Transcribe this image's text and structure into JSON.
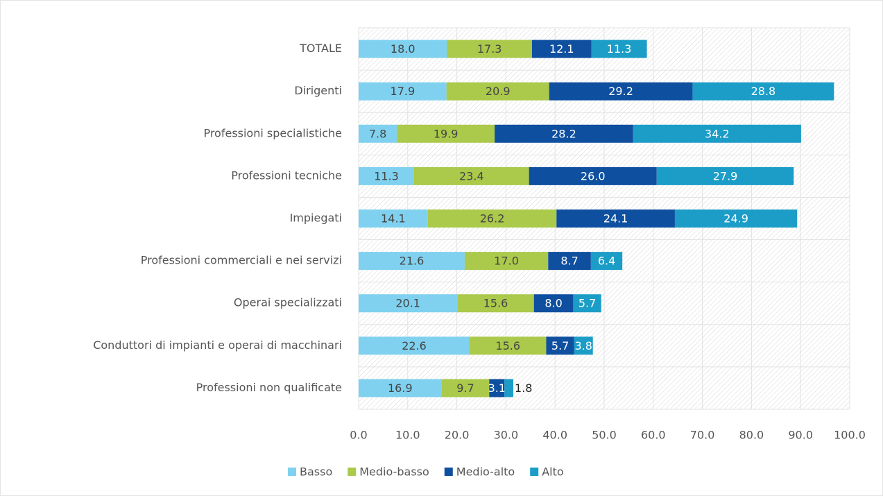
{
  "chart_data": {
    "type": "stacked-bar-horizontal",
    "categories": [
      "TOTALE",
      "Dirigenti",
      "Professioni specialistiche",
      "Professioni tecniche",
      "Impiegati",
      "Professioni commerciali e nei servizi",
      "Operai specializzati",
      "Conduttori di impianti e operai di macchinari",
      "Professioni non qualificate"
    ],
    "series": [
      {
        "name": "Basso",
        "color": "#7fd1ef",
        "values": [
          18.0,
          17.9,
          7.8,
          11.3,
          14.1,
          21.6,
          20.1,
          22.6,
          16.9
        ],
        "value_labels": [
          "18.0",
          "17.9",
          "7.8",
          "11.3",
          "14.1",
          "21.6",
          "20.1",
          "22.6",
          "16.9"
        ]
      },
      {
        "name": "Medio-basso",
        "color": "#abc94b",
        "values": [
          17.3,
          20.9,
          19.9,
          23.4,
          26.2,
          17.0,
          15.6,
          15.6,
          9.7
        ],
        "value_labels": [
          "17.3",
          "20.9",
          "19.9",
          "23.4",
          "26.2",
          "17.0",
          "15.6",
          "15.6",
          "9.7"
        ]
      },
      {
        "name": "Medio-alto",
        "color": "#0f4f9f",
        "values": [
          12.1,
          29.2,
          28.2,
          26.0,
          24.1,
          8.7,
          8.0,
          5.7,
          3.1
        ],
        "value_labels": [
          "12.1",
          "29.2",
          "28.2",
          "26.0",
          "24.1",
          "8.7",
          "8.0",
          "5.7",
          "3.1"
        ]
      },
      {
        "name": "Alto",
        "color": "#1b9dc7",
        "values": [
          11.3,
          28.8,
          34.2,
          27.9,
          24.9,
          6.4,
          5.7,
          3.8,
          1.8
        ],
        "value_labels": [
          "11.3",
          "28.8",
          "34.2",
          "27.9",
          "24.9",
          "6.4",
          "5.7",
          "3.8",
          "1.8"
        ]
      }
    ],
    "xlim": [
      0,
      100
    ],
    "xticks": [
      {
        "value": 0,
        "label": "0.0"
      },
      {
        "value": 10,
        "label": "10.0"
      },
      {
        "value": 20,
        "label": "20.0"
      },
      {
        "value": 30,
        "label": "30.0"
      },
      {
        "value": 40,
        "label": "40.0"
      },
      {
        "value": 50,
        "label": "50.0"
      },
      {
        "value": 60,
        "label": "60.0"
      },
      {
        "value": 70,
        "label": "70.0"
      },
      {
        "value": 80,
        "label": "80.0"
      },
      {
        "value": 90,
        "label": "90.0"
      },
      {
        "value": 100,
        "label": "100.0"
      }
    ],
    "grid": true,
    "legend": "bottom"
  }
}
